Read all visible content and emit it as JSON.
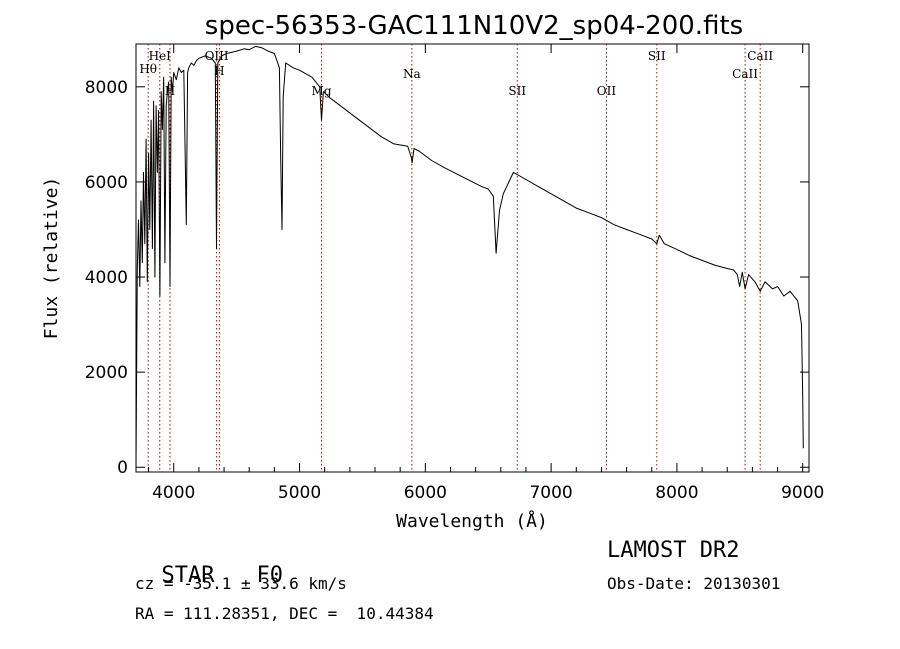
{
  "chart_data": {
    "type": "line",
    "title": "spec-56353-GAC111N10V2_sp04-200.fits",
    "xlabel": "Wavelength (Å)",
    "ylabel": "Flux (relative)",
    "xlim": [
      3700,
      9050
    ],
    "ylim": [
      -100,
      8900
    ],
    "xticks": [
      4000,
      5000,
      6000,
      7000,
      8000,
      9000
    ],
    "yticks": [
      0,
      2000,
      4000,
      6000,
      8000
    ],
    "grid": false,
    "series": [
      {
        "x": [
          3700,
          3710,
          3720,
          3730,
          3740,
          3750,
          3760,
          3770,
          3780,
          3790,
          3800,
          3810,
          3820,
          3830,
          3840,
          3850,
          3860,
          3870,
          3880,
          3890,
          3900,
          3910,
          3920,
          3930,
          3940,
          3950,
          3960,
          3970,
          3980,
          3990,
          4000,
          4020,
          4040,
          4060,
          4080,
          4100,
          4110,
          4120,
          4140,
          4160,
          4180,
          4200,
          4250,
          4300,
          4330,
          4340,
          4350,
          4380,
          4420,
          4500,
          4560,
          4600,
          4650,
          4700,
          4750,
          4800,
          4840,
          4850,
          4861,
          4870,
          4890,
          4950,
          5000,
          5100,
          5160,
          5175,
          5190,
          5250,
          5350,
          5450,
          5550,
          5650,
          5750,
          5860,
          5890,
          5895,
          5910,
          5950,
          6050,
          6150,
          6300,
          6450,
          6500,
          6540,
          6563,
          6590,
          6620,
          6700,
          6800,
          6900,
          7000,
          7100,
          7200,
          7300,
          7400,
          7500,
          7600,
          7700,
          7800,
          7840,
          7860,
          7900,
          8000,
          8100,
          8200,
          8300,
          8400,
          8450,
          8480,
          8498,
          8520,
          8542,
          8570,
          8620,
          8662,
          8700,
          8760,
          8800,
          8850,
          8900,
          8960,
          8990,
          9000,
          9005
        ],
        "y": [
          0,
          4200,
          5200,
          3800,
          5600,
          4300,
          6200,
          4700,
          6900,
          3900,
          6600,
          5000,
          7300,
          4600,
          7700,
          4000,
          7600,
          6200,
          7500,
          3600,
          7900,
          7100,
          8200,
          4300,
          7600,
          7900,
          8100,
          3800,
          8200,
          7900,
          8300,
          8150,
          8400,
          8300,
          8350,
          5100,
          8300,
          8400,
          8500,
          8450,
          8550,
          8600,
          8650,
          8600,
          8500,
          4600,
          8500,
          8650,
          8700,
          8750,
          8800,
          8780,
          8850,
          8820,
          8750,
          8700,
          8400,
          6500,
          5000,
          7800,
          8500,
          8400,
          8350,
          8200,
          8000,
          7300,
          7900,
          7750,
          7550,
          7350,
          7150,
          6950,
          6800,
          6750,
          6500,
          6400,
          6700,
          6650,
          6450,
          6300,
          6100,
          5900,
          5850,
          5700,
          4500,
          5400,
          5750,
          6200,
          6050,
          5900,
          5750,
          5600,
          5450,
          5350,
          5250,
          5100,
          5000,
          4900,
          4800,
          4700,
          4880,
          4700,
          4580,
          4450,
          4350,
          4250,
          4180,
          4150,
          4050,
          3800,
          4100,
          3750,
          4050,
          3900,
          3700,
          3900,
          3750,
          3800,
          3600,
          3700,
          3500,
          3000,
          1500,
          400
        ]
      }
    ],
    "annotation_lines": [
      {
        "label": "Hθ",
        "x": 3797
      },
      {
        "label": "HeI",
        "x": 3889
      },
      {
        "label": "H",
        "x": 3970
      },
      {
        "label": "OIII",
        "x": 4341
      },
      {
        "label": "H",
        "x": 4363
      },
      {
        "label": "Mg",
        "x": 5175
      },
      {
        "label": "Na",
        "x": 5893
      },
      {
        "label": "SII",
        "x": 6731
      },
      {
        "label": "OII",
        "x": 7440
      },
      {
        "label": "SII",
        "x": 7840
      },
      {
        "label": "CaII",
        "x": 8542
      },
      {
        "label": "CaII",
        "x": 8662
      }
    ]
  },
  "info": {
    "class": "STAR",
    "subclass": "F0",
    "survey": "LAMOST DR2",
    "cz": "cz = -35.1 ± 33.6 km/s",
    "obs_date": "Obs-Date: 20130301",
    "coords": "RA = 111.28351, DEC =  10.44384"
  }
}
